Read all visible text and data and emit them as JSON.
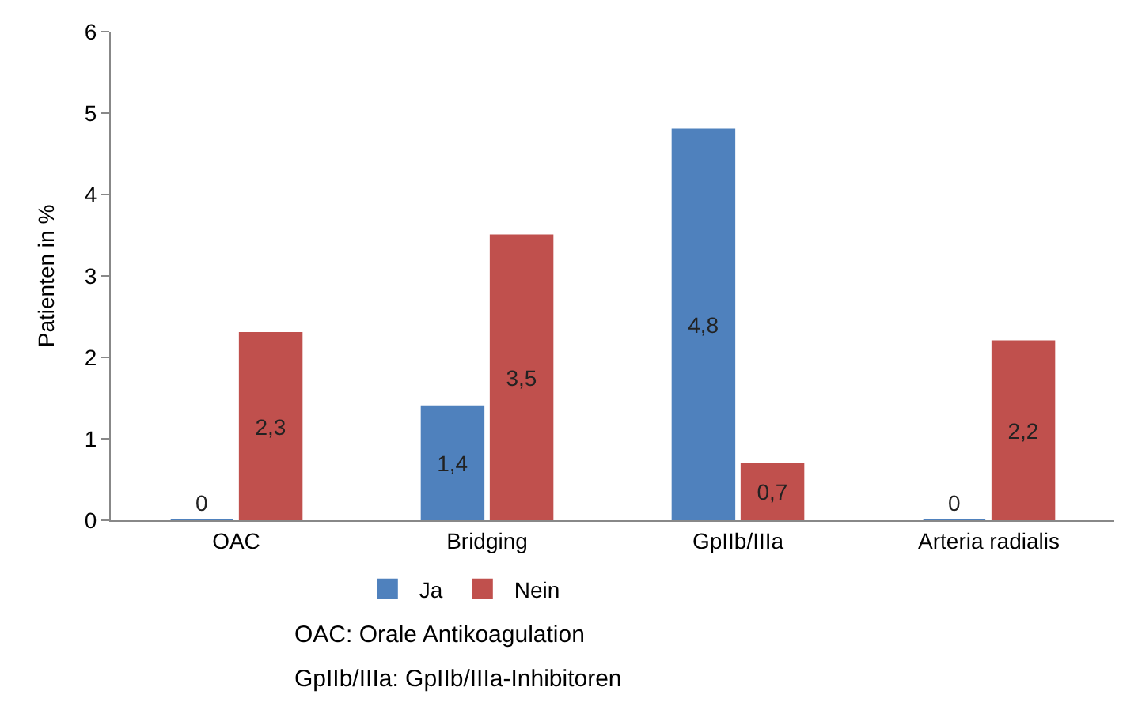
{
  "chart_data": {
    "type": "bar",
    "ylabel": "Patienten in %",
    "categories": [
      "OAC",
      "Bridging",
      "GpIIb/IIIa",
      "Arteria radialis"
    ],
    "series": [
      {
        "name": "Ja",
        "color": "#4f81bd",
        "values": [
          0,
          1.4,
          4.8,
          0
        ]
      },
      {
        "name": "Nein",
        "color": "#c0504d",
        "values": [
          2.3,
          3.5,
          0.7,
          2.2
        ]
      }
    ],
    "value_labels": [
      [
        "0",
        "1,4",
        "4,8",
        "0"
      ],
      [
        "2,3",
        "3,5",
        "0,7",
        "2,2"
      ]
    ],
    "ylim": [
      0,
      6
    ],
    "yticks": [
      0,
      1,
      2,
      3,
      4,
      5,
      6
    ],
    "legend": "bottom",
    "annotations": [
      "OAC: Orale Antikoagulation",
      "GpIIb/IIIa: GpIIb/IIIa-Inhibitoren"
    ]
  }
}
